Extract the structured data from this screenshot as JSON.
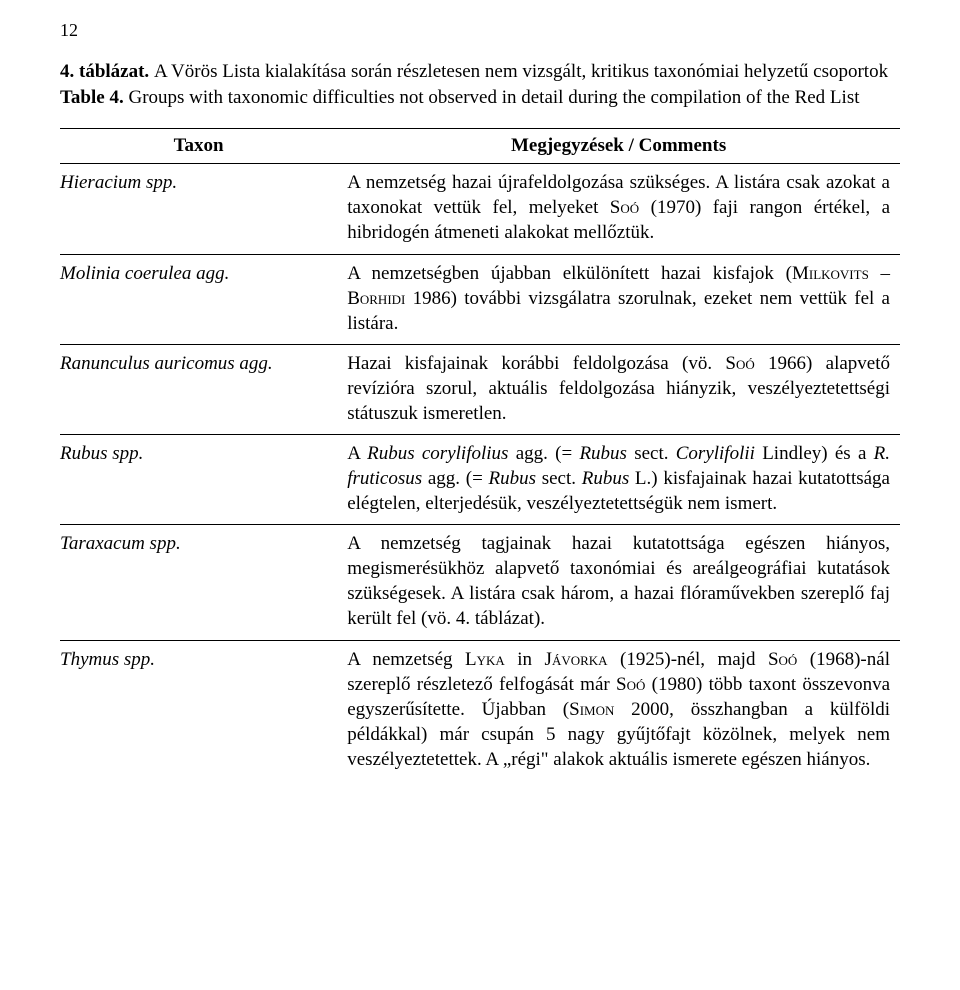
{
  "page_number": "12",
  "title": {
    "label_hu": "4. táblázat.",
    "text_hu": "A Vörös Lista kialakítása során részletesen nem vizsgált, kritikus taxonómiai helyzetű csoportok",
    "label_en": "Table 4.",
    "text_en": "Groups with taxonomic difficulties not observed in detail during the compilation of the Red List"
  },
  "columns": {
    "taxon": "Taxon",
    "comments": "Megjegyzések / Comments"
  },
  "rows": [
    {
      "taxon_html": "Hieracium <span class=\"normal\" style=\"font-style:normal\"></span>spp.",
      "taxon": "Hieracium spp.",
      "comment_html": "A nemzetség hazai újrafeldolgozása szükséges. A listára csak azokat a taxonokat vettük fel, melyeket S<span class=\"sc\">oó</span> (1970) faji rangon értékel, a hibridogén átmeneti alakokat mellőztük."
    },
    {
      "taxon": "Molinia coerulea agg.",
      "comment_html": "A nemzetségben újabban elkülönített hazai kisfajok (M<span class=\"sc\">ilkovits</span> – B<span class=\"sc\">orhidi</span> 1986) további vizsgálatra szorulnak, ezeket nem vettük fel a listára."
    },
    {
      "taxon": "Ranunculus auricomus agg.",
      "comment_html": "Hazai kisfajainak korábbi feldolgozása (vö. S<span class=\"sc\">oó</span> 1966) alapvető revízióra szorul, aktuális feldolgozása hiányzik, veszélyeztetettségi státuszuk ismeretlen."
    },
    {
      "taxon": "Rubus spp.",
      "comment_html": "A <span class=\"italic\">Rubus corylifolius</span> agg. (= <span class=\"italic\">Rubus</span> sect. <span class=\"italic\">Corylifolii</span> Lindley) és a <span class=\"italic\">R. fruticosus</span> agg. (= <span class=\"italic\">Rubus</span> sect. <span class=\"italic\">Rubus</span> L.) kisfajainak hazai kutatottsága elégtelen, elterjedésük, veszélyeztetettségük nem ismert."
    },
    {
      "taxon": "Taraxacum spp.",
      "comment_html": "A nemzetség tagjainak hazai kutatottsága egészen hiányos, megismerésükhöz alapvető taxonómiai és areálgeográfiai kutatások szükségesek. A listára csak három, a hazai flóraművekben szereplő faj került fel (vö. 4. táblázat)."
    },
    {
      "taxon": "Thymus spp.",
      "comment_html": "A nemzetség L<span class=\"sc\">yka</span> in J<span class=\"sc\">ávorka</span> (1925)-nél, majd S<span class=\"sc\">oó</span> (1968)-nál szereplő részletező felfogását már S<span class=\"sc\">oó</span> (1980) több taxont összevonva egyszerűsítette. Újabban (S<span class=\"sc\">imon</span> 2000, összhangban a külföldi példákkal) már csupán 5 nagy gyűjtőfajt közölnek, melyek nem veszélyeztetettek. A „régi\" alakok aktuális ismerete egészen hiányos."
    }
  ]
}
